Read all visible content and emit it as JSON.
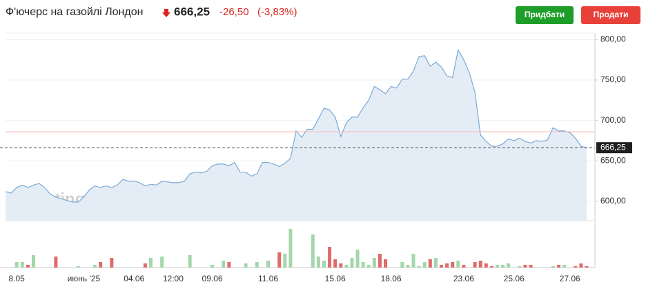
{
  "header": {
    "title": "Ф'ючерс на газойлі Лондон",
    "price": {
      "value": 666.25,
      "label": "666,25"
    },
    "change": {
      "value": -26.5,
      "label": "-26,50"
    },
    "change_percent": {
      "value": -3.83,
      "label": "(-3,83%)"
    },
    "buy_button": "Придбати",
    "sell_button": "Продати"
  },
  "chart_data": {
    "type": "area",
    "watermark": "Investing.com",
    "categories": [
      null,
      null,
      "8.05",
      null,
      null,
      null,
      null,
      null,
      null,
      null,
      null,
      null,
      null,
      null,
      "июнь '25",
      null,
      null,
      null,
      null,
      null,
      null,
      null,
      null,
      "04.06",
      null,
      null,
      null,
      null,
      null,
      null,
      "12:00",
      null,
      null,
      null,
      null,
      null,
      null,
      "09.06",
      null,
      null,
      null,
      null,
      null,
      null,
      null,
      null,
      null,
      "11.06",
      null,
      null,
      null,
      null,
      null,
      null,
      null,
      null,
      null,
      null,
      null,
      "15.06",
      null,
      null,
      null,
      null,
      null,
      null,
      null,
      null,
      null,
      "18.06",
      null,
      null,
      null,
      null,
      null,
      null,
      null,
      null,
      null,
      null,
      null,
      null,
      "23.06",
      null,
      null,
      null,
      null,
      null,
      null,
      null,
      null,
      "25.06",
      null,
      null,
      null,
      null,
      null,
      null,
      null,
      null,
      null,
      "27.06",
      null,
      null,
      null
    ],
    "series": [
      {
        "color": "#7aa9d6",
        "fill": "#e4edf6",
        "values": [
          612,
          610,
          617,
          620,
          617,
          620,
          622,
          617,
          609,
          605,
          603,
          601,
          599,
          599,
          605,
          614,
          619,
          617,
          619,
          617,
          620,
          627,
          625,
          625,
          623,
          619,
          621,
          620,
          625,
          624,
          623,
          623,
          625,
          634,
          636,
          635,
          637,
          644,
          646,
          646,
          644,
          648,
          636,
          636,
          631,
          634,
          648,
          648,
          646,
          643,
          647,
          653,
          687,
          679,
          689,
          689,
          702,
          715,
          713,
          704,
          680,
          697,
          704,
          704,
          716,
          725,
          742,
          738,
          733,
          742,
          740,
          751,
          751,
          761,
          779,
          780,
          767,
          772,
          766,
          755,
          753,
          787,
          775,
          759,
          735,
          682,
          674,
          668,
          668,
          671,
          677,
          675,
          678,
          674,
          672,
          675,
          674,
          676,
          691,
          687,
          687,
          685,
          678,
          668,
          666.25
        ]
      }
    ],
    "volume": {
      "up_color": "#a3d7ab",
      "down_color": "#e06a6a",
      "values": [
        0,
        0,
        8,
        8,
        4,
        18,
        0,
        0,
        0,
        16,
        0,
        0,
        0,
        2,
        0,
        0,
        4,
        8,
        0,
        14,
        0,
        0,
        0,
        0,
        0,
        6,
        14,
        0,
        16,
        0,
        0,
        0,
        0,
        18,
        0,
        0,
        0,
        4,
        0,
        10,
        8,
        0,
        0,
        6,
        0,
        8,
        0,
        10,
        0,
        22,
        20,
        56,
        0,
        0,
        0,
        48,
        16,
        10,
        30,
        12,
        6,
        4,
        14,
        26,
        8,
        4,
        14,
        20,
        12,
        0,
        0,
        8,
        4,
        20,
        2,
        8,
        12,
        14,
        4,
        6,
        8,
        10,
        4,
        0,
        8,
        10,
        6,
        2,
        4,
        4,
        6,
        0,
        2,
        4,
        4,
        0,
        0,
        0,
        2,
        4,
        4,
        0,
        2,
        6,
        2
      ]
    },
    "ylim": [
      576,
      808
    ],
    "yticks": [
      {
        "value": 600,
        "label": "600,00"
      },
      {
        "value": 650,
        "label": "650,00"
      },
      {
        "value": 700,
        "label": "700,00"
      },
      {
        "value": 750,
        "label": "750,00"
      },
      {
        "value": 800,
        "label": "800,00"
      }
    ],
    "reference_line": {
      "value": 686,
      "color": "#f2b6b6"
    },
    "last_value": {
      "value": 666.25,
      "label": "666,25"
    }
  }
}
